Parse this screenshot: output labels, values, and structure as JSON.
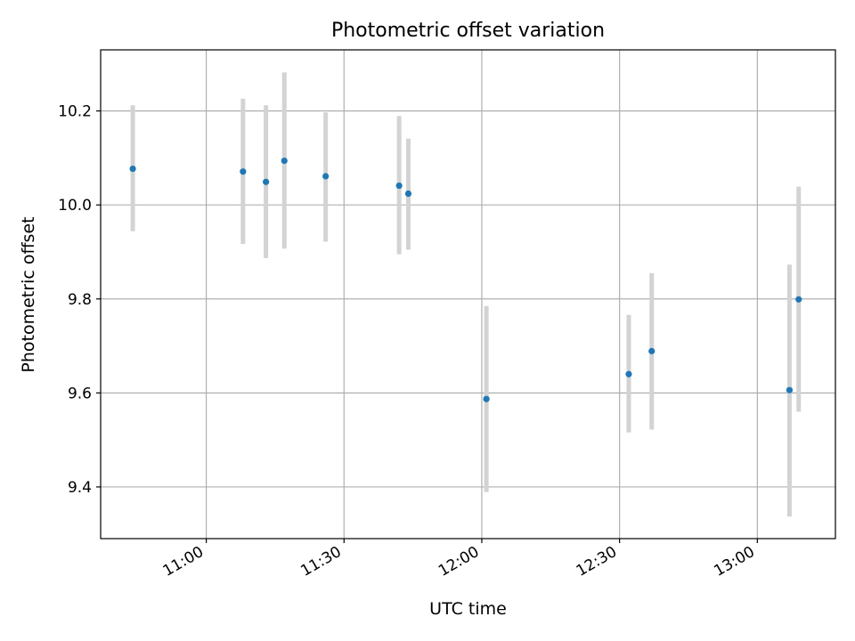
{
  "chart_data": {
    "type": "scatter",
    "title": "Photometric offset variation",
    "xlabel": "UTC time",
    "ylabel": "Photometric offset",
    "xlim": [
      "10:37",
      "13:17"
    ],
    "ylim": [
      9.29,
      10.33
    ],
    "x_ticks": [
      "11:00",
      "11:30",
      "12:00",
      "12:30",
      "13:00"
    ],
    "y_ticks": [
      "9.4",
      "9.6",
      "9.8",
      "10.0",
      "10.2"
    ],
    "grid": true,
    "error_bar_color": "#d3d3d3",
    "marker_color": "#1f77b4",
    "points": [
      {
        "x": "10:44",
        "y": 10.077,
        "y_low": 9.944,
        "y_high": 10.212
      },
      {
        "x": "11:08",
        "y": 10.071,
        "y_low": 9.917,
        "y_high": 10.226
      },
      {
        "x": "11:13",
        "y": 10.049,
        "y_low": 9.887,
        "y_high": 10.212
      },
      {
        "x": "11:17",
        "y": 10.094,
        "y_low": 9.907,
        "y_high": 10.282
      },
      {
        "x": "11:26",
        "y": 10.061,
        "y_low": 9.922,
        "y_high": 10.197
      },
      {
        "x": "11:42",
        "y": 10.041,
        "y_low": 9.895,
        "y_high": 10.189
      },
      {
        "x": "11:44",
        "y": 10.024,
        "y_low": 9.905,
        "y_high": 10.141
      },
      {
        "x": "12:01",
        "y": 9.587,
        "y_low": 9.389,
        "y_high": 9.785
      },
      {
        "x": "12:32",
        "y": 9.64,
        "y_low": 9.516,
        "y_high": 9.766
      },
      {
        "x": "12:37",
        "y": 9.689,
        "y_low": 9.522,
        "y_high": 9.855
      },
      {
        "x": "13:07",
        "y": 9.606,
        "y_low": 9.337,
        "y_high": 9.873
      },
      {
        "x": "13:09",
        "y": 9.799,
        "y_low": 9.56,
        "y_high": 10.039
      }
    ]
  }
}
